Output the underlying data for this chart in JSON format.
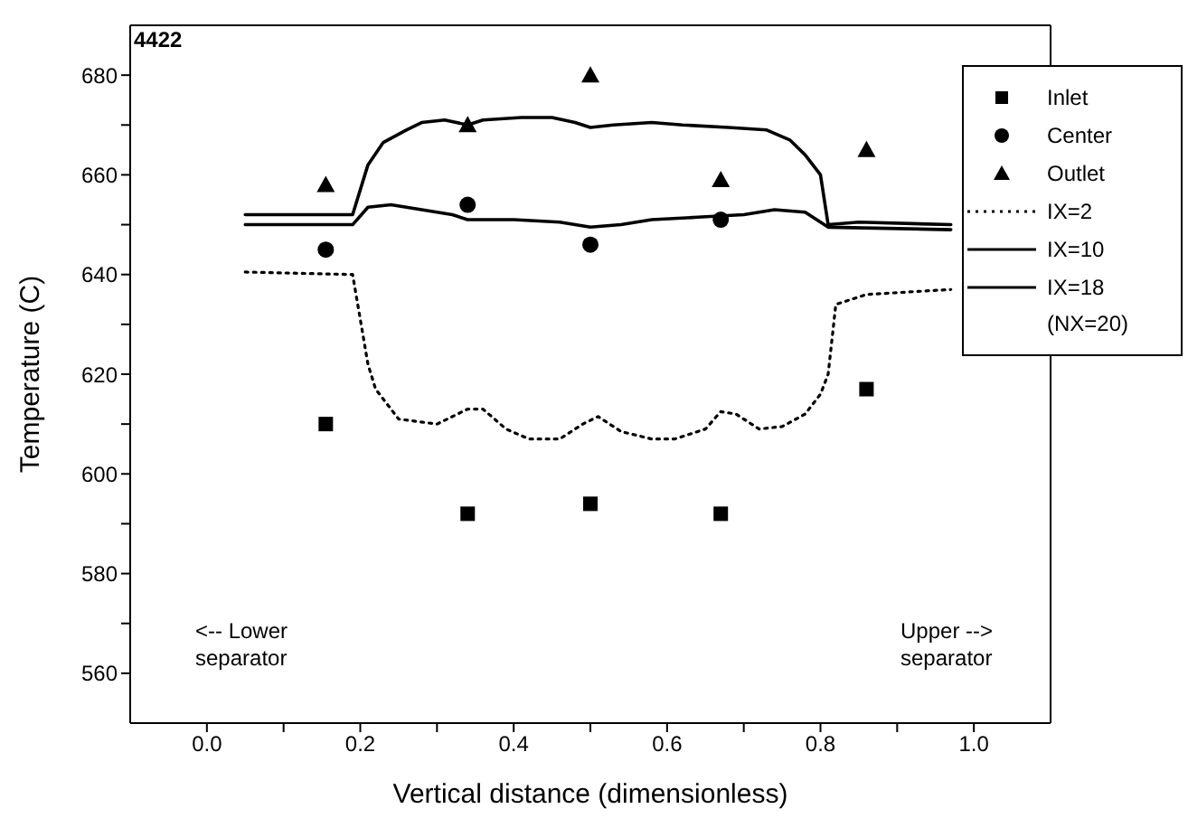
{
  "chart_data": {
    "type": "scatter",
    "xlabel": "Vertical distance (dimensionless)",
    "ylabel": "Temperature (C)",
    "legend_title": "(NX=20)",
    "legend": "right",
    "grid": false,
    "xlim": [
      -0.1,
      1.1
    ],
    "xticks": [
      {
        "value": 0,
        "label": "0.0"
      },
      {
        "value": 0.1,
        "label": null
      },
      {
        "value": 0.2,
        "label": "0.2"
      },
      {
        "value": 0.3,
        "label": null
      },
      {
        "value": 0.4,
        "label": "0.4"
      },
      {
        "value": 0.5,
        "label": null
      },
      {
        "value": 0.6,
        "label": "0.6"
      },
      {
        "value": 0.7,
        "label": null
      },
      {
        "value": 0.8,
        "label": "0.8"
      },
      {
        "value": 0.9,
        "label": null
      },
      {
        "value": 1,
        "label": "1.0"
      }
    ],
    "ylim": [
      550,
      690
    ],
    "yticks": [
      560,
      {
        "value": 570,
        "label": null
      },
      580,
      {
        "value": 590,
        "label": null
      },
      600,
      {
        "value": 610,
        "label": null
      },
      620,
      {
        "value": 630,
        "label": null
      },
      640,
      {
        "value": 650,
        "label": null
      },
      660,
      {
        "value": 670,
        "label": null
      },
      680
    ],
    "annotations": [
      "4422",
      "<-- Lower separator",
      "Upper --> separator"
    ],
    "series": [
      {
        "name": "Inlet",
        "marker": "square",
        "color": "#000000",
        "x": [
          0.155,
          0.34,
          0.5,
          0.67,
          0.86
        ],
        "values": [
          610,
          592,
          594,
          592,
          617
        ]
      },
      {
        "name": "Center",
        "marker": "circle",
        "color": "#000000",
        "x": [
          0.155,
          0.34,
          0.5,
          0.67
        ],
        "values": [
          645,
          654,
          646,
          651
        ]
      },
      {
        "name": "Outlet",
        "marker": "triangle",
        "color": "#000000",
        "x": [
          0.155,
          0.34,
          0.5,
          0.67,
          0.86
        ],
        "values": [
          658,
          670,
          680,
          659,
          665
        ]
      },
      {
        "name": "IX=2",
        "type": "line",
        "line_style": "dotted",
        "color": "#000000",
        "x": [
          0.05,
          0.19,
          0.21,
          0.22,
          0.25,
          0.3,
          0.34,
          0.36,
          0.39,
          0.42,
          0.46,
          0.49,
          0.51,
          0.54,
          0.58,
          0.61,
          0.65,
          0.67,
          0.69,
          0.72,
          0.75,
          0.78,
          0.8,
          0.81,
          0.82,
          0.86,
          0.97
        ],
        "values": [
          640.5,
          640,
          622,
          617,
          611,
          610,
          613,
          613,
          609,
          607,
          607,
          610,
          611.5,
          608.5,
          607,
          607,
          609,
          612.5,
          612,
          609,
          609.5,
          612,
          616,
          620,
          634,
          636,
          637
        ]
      },
      {
        "name": "IX=10",
        "type": "line",
        "line_style": "solid",
        "color": "#000000",
        "x": [
          0.05,
          0.19,
          0.21,
          0.24,
          0.28,
          0.32,
          0.34,
          0.4,
          0.46,
          0.5,
          0.54,
          0.58,
          0.64,
          0.7,
          0.74,
          0.78,
          0.81,
          0.97
        ],
        "values": [
          650,
          650,
          653.5,
          654,
          653,
          652,
          651,
          651,
          650.5,
          649.5,
          650,
          651,
          651.5,
          652,
          653,
          652.5,
          649.5,
          649
        ]
      },
      {
        "name": "IX=18",
        "type": "line",
        "line_style": "solid",
        "color": "#000000",
        "x": [
          0.05,
          0.19,
          0.21,
          0.23,
          0.26,
          0.28,
          0.31,
          0.34,
          0.36,
          0.41,
          0.45,
          0.48,
          0.5,
          0.53,
          0.58,
          0.62,
          0.68,
          0.73,
          0.76,
          0.78,
          0.8,
          0.81,
          0.85,
          0.97
        ],
        "values": [
          652,
          652,
          662,
          666.5,
          669,
          670.5,
          671,
          670,
          671,
          671.5,
          671.5,
          670.5,
          669.5,
          670,
          670.5,
          670,
          669.5,
          669,
          667,
          664,
          660,
          650,
          650.5,
          650
        ]
      }
    ]
  }
}
